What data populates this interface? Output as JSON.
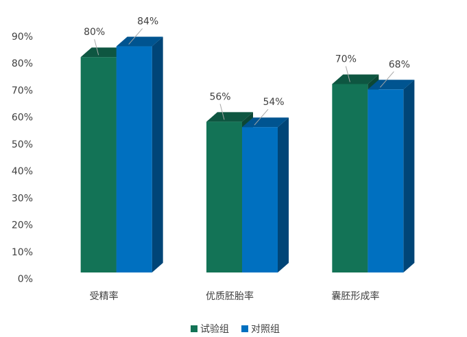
{
  "chart_data": {
    "type": "bar3d",
    "categories": [
      "受精率",
      "优质胚胎率",
      "囊胚形成率"
    ],
    "series": [
      {
        "name": "试验组",
        "color": "#137356",
        "values": [
          80,
          56,
          70
        ],
        "value_labels": [
          "80%",
          "56%",
          "70%"
        ]
      },
      {
        "name": "对照组",
        "color": "#0070c0",
        "values": [
          84,
          54,
          68
        ],
        "value_labels": [
          "84%",
          "54%",
          "68%"
        ]
      }
    ],
    "ylim": [
      0,
      90
    ],
    "yticks": [
      {
        "value": 0,
        "label": "0%"
      },
      {
        "value": 10,
        "label": "10%"
      },
      {
        "value": 20,
        "label": "20%"
      },
      {
        "value": 30,
        "label": "30%"
      },
      {
        "value": 40,
        "label": "40%"
      },
      {
        "value": 50,
        "label": "50%"
      },
      {
        "value": 60,
        "label": "60%"
      },
      {
        "value": 70,
        "label": "70%"
      },
      {
        "value": 80,
        "label": "80%"
      },
      {
        "value": 90,
        "label": "90%"
      }
    ],
    "legend": "bottom"
  }
}
